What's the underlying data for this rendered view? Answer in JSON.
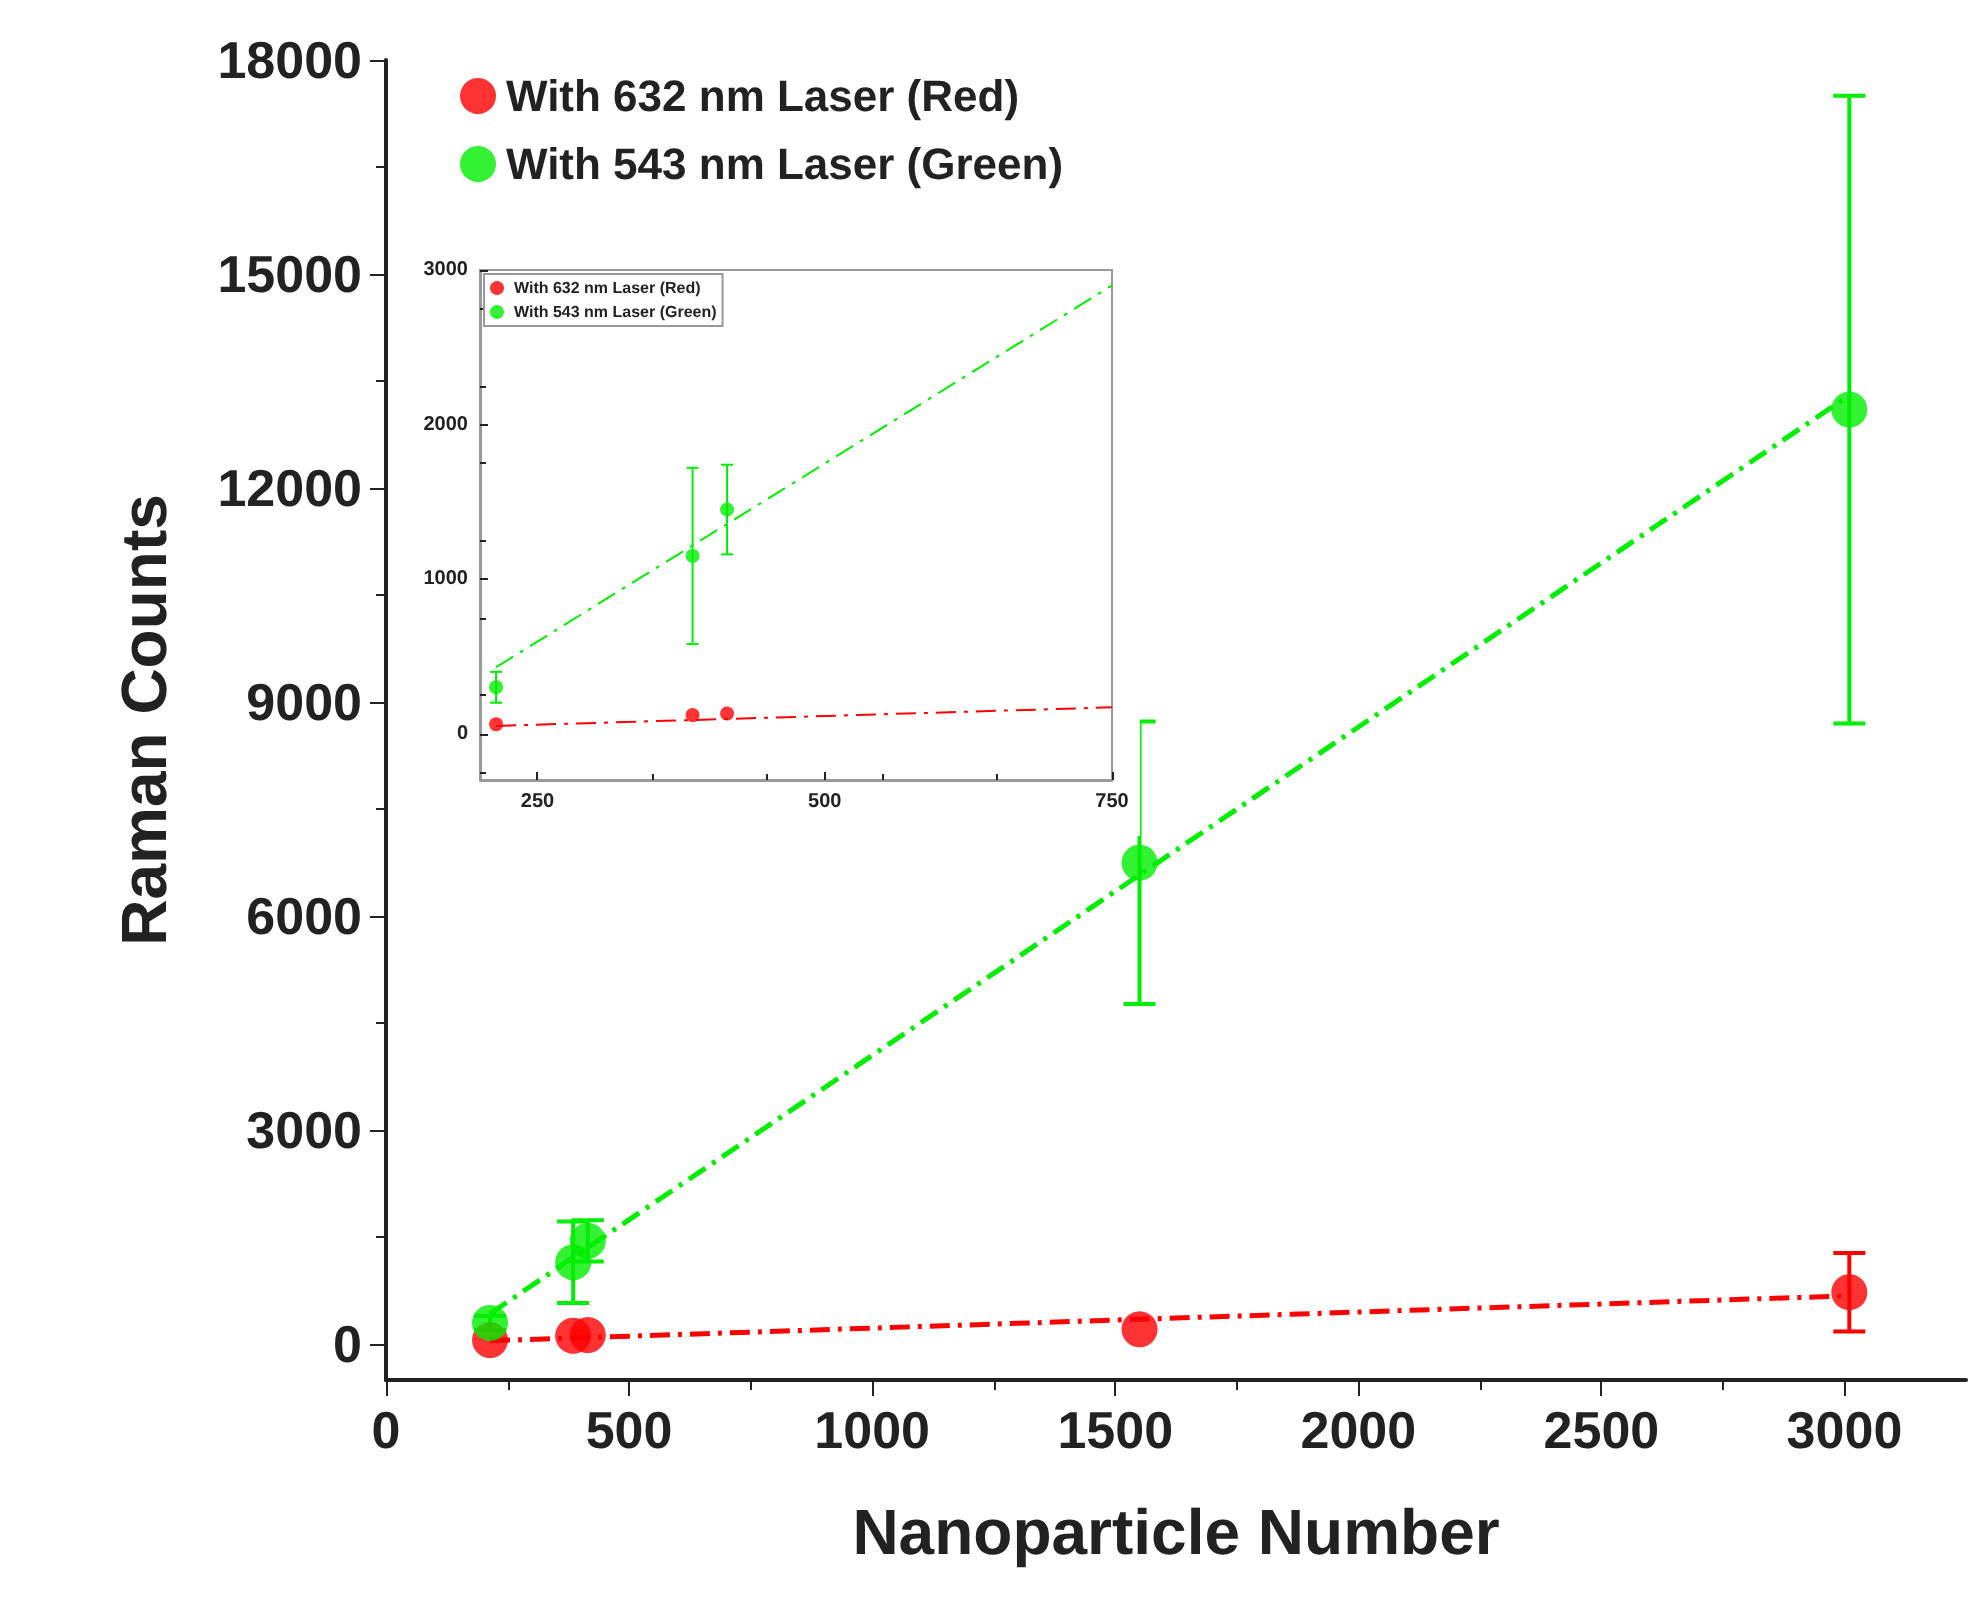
{
  "chart_data": [
    {
      "type": "scatter",
      "xlabel": "Nanoparticle Number",
      "ylabel": "Raman Counts",
      "xlim": [
        0,
        3250
      ],
      "ylim": [
        -500,
        18000
      ],
      "xticks": [
        0,
        500,
        1000,
        1500,
        2000,
        2500,
        3000
      ],
      "yticks": [
        0,
        3000,
        6000,
        9000,
        12000,
        15000,
        18000
      ],
      "grid": false,
      "legend": "top left",
      "marker": "circle",
      "series": [
        {
          "name": "With 632 nm Laser (Red)",
          "color": "#ff0000",
          "x": [
            214,
            385,
            415,
            1550,
            3010
          ],
          "values": [
            60,
            120,
            130,
            210,
            730
          ],
          "errors": [
            null,
            null,
            null,
            null,
            550
          ]
        },
        {
          "name": "With 543 nm Laser (Green)",
          "color": "#00ee00",
          "x": [
            214,
            385,
            415,
            1550,
            3010
          ],
          "values": [
            300,
            1150,
            1450,
            6750,
            13100
          ],
          "errors": [
            100,
            570,
            290,
            1980,
            4400
          ]
        },
        {
          "type": "line",
          "color": "#ff0000",
          "x": [
            214,
            3010
          ],
          "values": [
            50,
            680
          ],
          "line_style": "dashed",
          "marker": "none"
        },
        {
          "type": "line",
          "color": "#00ee00",
          "x": [
            214,
            3010
          ],
          "values": [
            430,
            13300
          ],
          "line_style": "dashed",
          "marker": "none"
        }
      ]
    },
    {
      "type": "scatter",
      "xlim": [
        200,
        750
      ],
      "ylim": [
        -300,
        3000
      ],
      "xticks": [
        250,
        500,
        750
      ],
      "yticks": [
        0,
        1000,
        2000,
        3000
      ],
      "grid": false,
      "legend": "top left",
      "marker": "circle",
      "series": [
        {
          "name": "With 632 nm Laser (Red)",
          "color": "#ff0000",
          "x": [
            214,
            385,
            415
          ],
          "values": [
            60,
            120,
            130
          ]
        },
        {
          "name": "With 543 nm Laser (Green)",
          "color": "#00ee00",
          "x": [
            214,
            385,
            415
          ],
          "values": [
            300,
            1150,
            1450
          ],
          "errors": [
            100,
            570,
            290
          ]
        },
        {
          "type": "line",
          "color": "#ff0000",
          "x": [
            214,
            750
          ],
          "values": [
            50,
            170
          ],
          "line_style": "dashed",
          "marker": "none"
        },
        {
          "type": "line",
          "color": "#00ee00",
          "x": [
            214,
            750
          ],
          "values": [
            430,
            2900
          ],
          "line_style": "dashed",
          "marker": "none"
        }
      ]
    }
  ]
}
